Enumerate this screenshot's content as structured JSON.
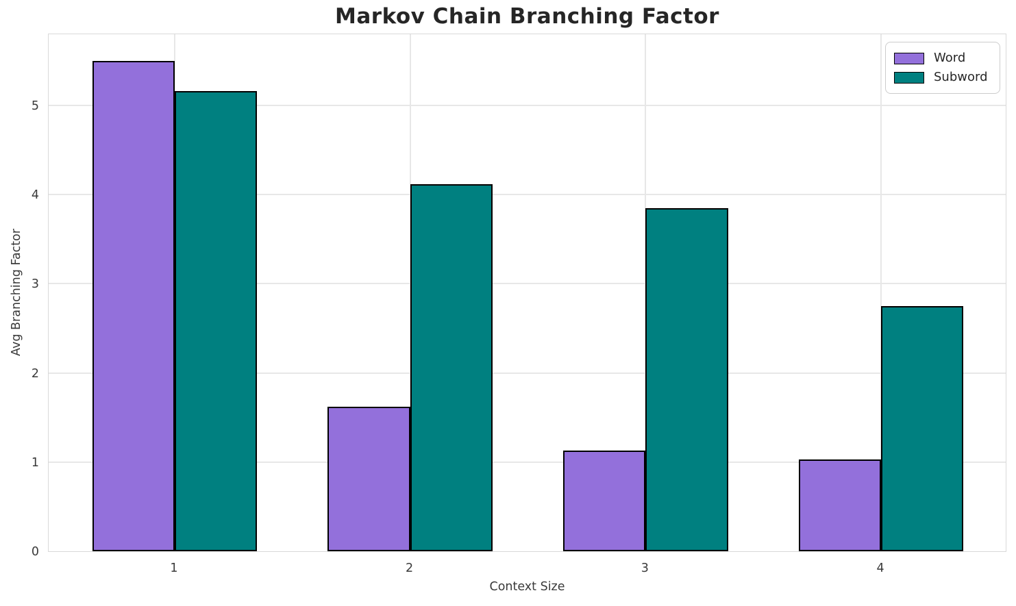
{
  "chart_data": {
    "type": "bar",
    "title": "Markov Chain Branching Factor",
    "xlabel": "Context Size",
    "ylabel": "Avg Branching Factor",
    "categories": [
      "1",
      "2",
      "3",
      "4"
    ],
    "series": [
      {
        "name": "Word",
        "color": "#9370db",
        "values": [
          5.5,
          1.62,
          1.13,
          1.03
        ]
      },
      {
        "name": "Subword",
        "color": "#008080",
        "values": [
          5.16,
          4.12,
          3.85,
          2.75
        ]
      }
    ],
    "yticks": [
      "0",
      "1",
      "2",
      "3",
      "4",
      "5"
    ],
    "ylim": [
      0,
      5.81
    ],
    "grid": true,
    "legend_position": "upper right",
    "bar_edge_color": "#000000",
    "grid_color": "#e7e7e7",
    "background_color": "#ffffff"
  }
}
